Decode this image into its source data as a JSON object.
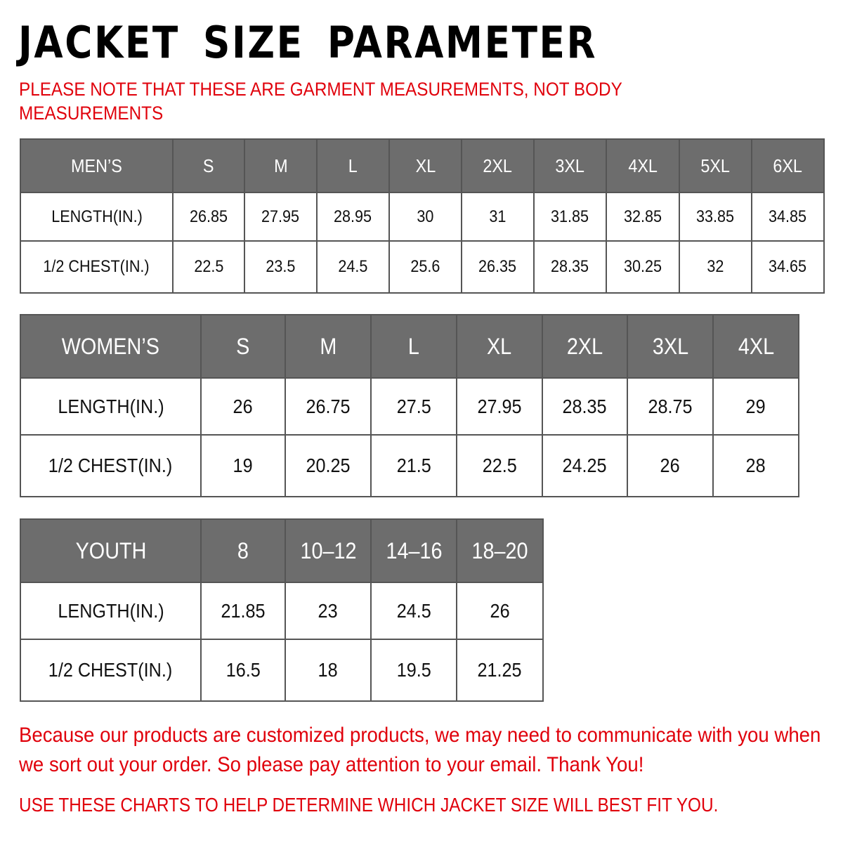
{
  "title": "JACKET SIZE PARAMETER",
  "note": "PLEASE NOTE THAT THESE ARE GARMENT MEASUREMENTS, NOT BODY MEASUREMENTS",
  "header_color": "#6d6d6d",
  "accent_color": "#e0000b",
  "tables": [
    {
      "id": "men",
      "header": [
        "MEN’S",
        "S",
        "M",
        "L",
        "XL",
        "2XL",
        "3XL",
        "4XL",
        "5XL",
        "6XL"
      ],
      "rows": [
        [
          "LENGTH(IN.)",
          "26.85",
          "27.95",
          "28.95",
          "30",
          "31",
          "31.85",
          "32.85",
          "33.85",
          "34.85"
        ],
        [
          "1/2 CHEST(IN.)",
          "22.5",
          "23.5",
          "24.5",
          "25.6",
          "26.35",
          "28.35",
          "30.25",
          "32",
          "34.65"
        ]
      ]
    },
    {
      "id": "women",
      "header": [
        "WOMEN’S",
        "S",
        "M",
        "L",
        "XL",
        "2XL",
        "3XL",
        "4XL"
      ],
      "rows": [
        [
          "LENGTH(IN.)",
          "26",
          "26.75",
          "27.5",
          "27.95",
          "28.35",
          "28.75",
          "29"
        ],
        [
          "1/2 CHEST(IN.)",
          "19",
          "20.25",
          "21.5",
          "22.5",
          "24.25",
          "26",
          "28"
        ]
      ]
    },
    {
      "id": "youth",
      "header": [
        "YOUTH",
        "8",
        "10–12",
        "14–16",
        "18–20"
      ],
      "rows": [
        [
          "LENGTH(IN.)",
          "21.85",
          "23",
          "24.5",
          "26"
        ],
        [
          "1/2 CHEST(IN.)",
          "16.5",
          "18",
          "19.5",
          "21.25"
        ]
      ]
    }
  ],
  "footer": {
    "message": "Because our products are customized products, we may need to communicate with you when we sort out your order. So please pay attention to your email. Thank You!",
    "advice": "USE THESE CHARTS TO HELP DETERMINE WHICH JACKET SIZE WILL BEST FIT YOU."
  }
}
